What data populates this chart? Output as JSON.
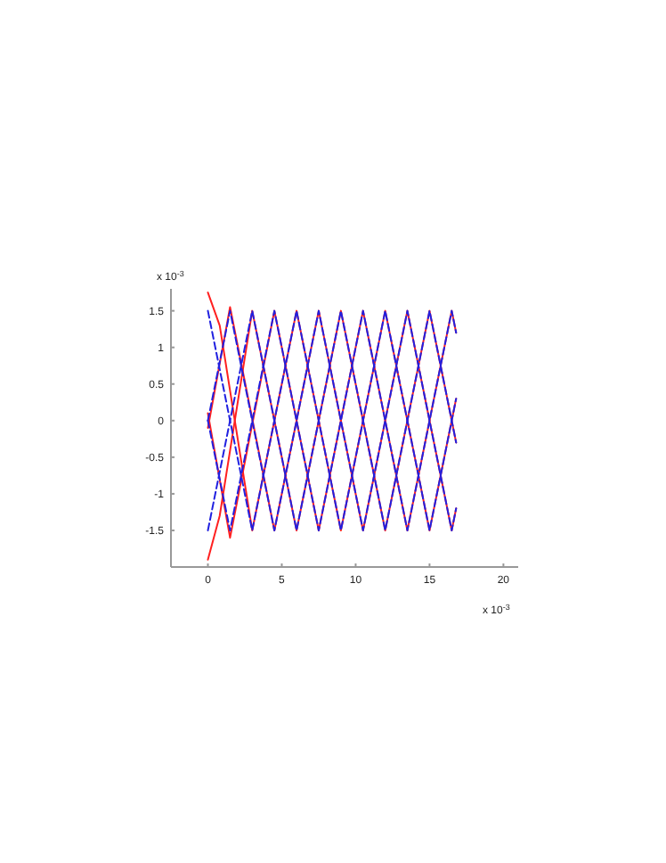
{
  "chart_data": {
    "type": "line",
    "xlim": [
      -2.5,
      21
    ],
    "ylim": [
      -2,
      1.8
    ],
    "xticks": [
      0,
      5,
      10,
      15,
      20
    ],
    "yticks": [
      -1.5,
      -1,
      -0.5,
      0,
      0.5,
      1,
      1.5
    ],
    "annotations": [
      "x 10$^{-3}$",
      "x 10$^{-3}$"
    ],
    "series": [
      {
        "color": "#ff2020",
        "line_style": "solid",
        "x": [
          0,
          0.8,
          3,
          6,
          9,
          12,
          15,
          16.8
        ],
        "values": [
          1.75,
          1.3,
          -1.5,
          1.5,
          -1.5,
          1.5,
          -1.5,
          0.3
        ]
      },
      {
        "color": "#ff2020",
        "line_style": "solid",
        "x": [
          0,
          1.5,
          4.5,
          7.5,
          10.5,
          13.5,
          16.5,
          16.8
        ],
        "values": [
          -0.1,
          1.55,
          -1.5,
          1.5,
          -1.5,
          1.5,
          -1.5,
          -1.2
        ]
      },
      {
        "color": "#ff2020",
        "line_style": "solid",
        "x": [
          0,
          0.8,
          3,
          6,
          9,
          12,
          15,
          16.8
        ],
        "values": [
          -1.9,
          -1.3,
          1.5,
          -1.5,
          1.5,
          -1.5,
          1.5,
          -0.3
        ]
      },
      {
        "color": "#ff2020",
        "line_style": "solid",
        "x": [
          0,
          1.5,
          4.5,
          7.5,
          10.5,
          13.5,
          16.5,
          16.8
        ],
        "values": [
          0.1,
          -1.6,
          1.5,
          -1.5,
          1.5,
          -1.5,
          1.5,
          1.2
        ]
      },
      {
        "color": "#2020e0",
        "line_style": "dashed",
        "x": [
          0,
          3,
          6,
          9,
          12,
          15,
          16.8
        ],
        "values": [
          1.5,
          -1.5,
          1.5,
          -1.5,
          1.5,
          -1.5,
          0.3
        ]
      },
      {
        "color": "#2020e0",
        "line_style": "dashed",
        "x": [
          0,
          1.5,
          4.5,
          7.5,
          10.5,
          13.5,
          16.5,
          16.8
        ],
        "values": [
          0,
          1.5,
          -1.5,
          1.5,
          -1.5,
          1.5,
          -1.5,
          -1.2
        ]
      },
      {
        "color": "#2020e0",
        "line_style": "dashed",
        "x": [
          0,
          3,
          6,
          9,
          12,
          15,
          16.8
        ],
        "values": [
          -1.5,
          1.5,
          -1.5,
          1.5,
          -1.5,
          1.5,
          -0.3
        ]
      },
      {
        "color": "#2020e0",
        "line_style": "dashed",
        "x": [
          0,
          1.5,
          4.5,
          7.5,
          10.5,
          13.5,
          16.5,
          16.8
        ],
        "values": [
          0,
          -1.5,
          1.5,
          -1.5,
          1.5,
          -1.5,
          1.5,
          1.2
        ]
      }
    ]
  }
}
